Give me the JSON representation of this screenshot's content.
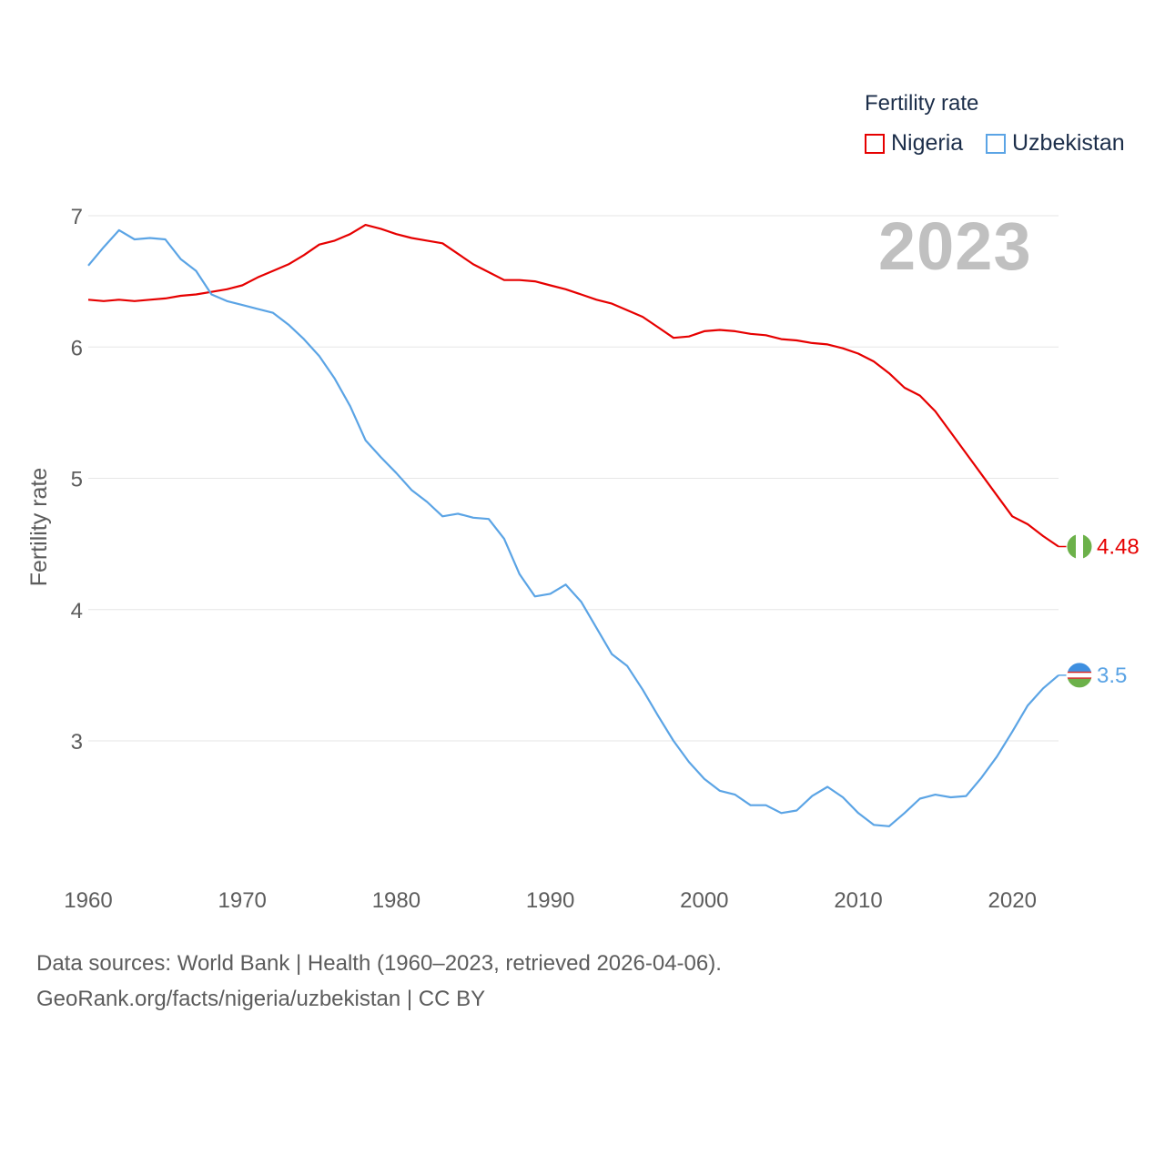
{
  "chart_data": {
    "type": "line",
    "ylabel": "Fertility rate",
    "xlabel": "",
    "xlim": [
      1960,
      2023
    ],
    "ylim": [
      2.0,
      7.0
    ],
    "yticks": [
      3,
      4,
      5,
      6,
      7
    ],
    "xticks": [
      1960,
      1970,
      1980,
      1990,
      2000,
      2010,
      2020
    ],
    "grid": true,
    "legend": {
      "title": "Fertility rate",
      "placement": "top-right"
    },
    "year_label": "2023",
    "series": [
      {
        "name": "Nigeria",
        "color": "#e60000",
        "end_label": "4.48",
        "flag_icon": "nigeria-flag-icon",
        "x": [
          1960,
          1961,
          1962,
          1963,
          1964,
          1965,
          1966,
          1967,
          1968,
          1969,
          1970,
          1971,
          1972,
          1973,
          1974,
          1975,
          1976,
          1977,
          1978,
          1979,
          1980,
          1981,
          1982,
          1983,
          1984,
          1985,
          1986,
          1987,
          1988,
          1989,
          1990,
          1991,
          1992,
          1993,
          1994,
          1995,
          1996,
          1997,
          1998,
          1999,
          2000,
          2001,
          2002,
          2003,
          2004,
          2005,
          2006,
          2007,
          2008,
          2009,
          2010,
          2011,
          2012,
          2013,
          2014,
          2015,
          2016,
          2017,
          2018,
          2019,
          2020,
          2021,
          2022,
          2023
        ],
        "values": [
          6.36,
          6.35,
          6.36,
          6.35,
          6.36,
          6.37,
          6.39,
          6.4,
          6.42,
          6.44,
          6.47,
          6.53,
          6.58,
          6.63,
          6.7,
          6.78,
          6.81,
          6.86,
          6.93,
          6.9,
          6.86,
          6.83,
          6.81,
          6.79,
          6.71,
          6.63,
          6.57,
          6.51,
          6.51,
          6.5,
          6.47,
          6.44,
          6.4,
          6.36,
          6.33,
          6.28,
          6.23,
          6.15,
          6.07,
          6.08,
          6.12,
          6.13,
          6.12,
          6.1,
          6.09,
          6.06,
          6.05,
          6.03,
          6.02,
          5.99,
          5.95,
          5.89,
          5.8,
          5.69,
          5.63,
          5.51,
          5.35,
          5.19,
          5.03,
          4.87,
          4.71,
          4.65,
          4.56,
          4.48
        ]
      },
      {
        "name": "Uzbekistan",
        "color": "#5ba4e5",
        "end_label": "3.5",
        "flag_icon": "uzbekistan-flag-icon",
        "x": [
          1960,
          1961,
          1962,
          1963,
          1964,
          1965,
          1966,
          1967,
          1968,
          1969,
          1970,
          1971,
          1972,
          1973,
          1974,
          1975,
          1976,
          1977,
          1978,
          1979,
          1980,
          1981,
          1982,
          1983,
          1984,
          1985,
          1986,
          1987,
          1988,
          1989,
          1990,
          1991,
          1992,
          1993,
          1994,
          1995,
          1996,
          1997,
          1998,
          1999,
          2000,
          2001,
          2002,
          2003,
          2004,
          2005,
          2006,
          2007,
          2008,
          2009,
          2010,
          2011,
          2012,
          2013,
          2014,
          2015,
          2016,
          2017,
          2018,
          2019,
          2020,
          2021,
          2022,
          2023
        ],
        "values": [
          6.62,
          6.76,
          6.89,
          6.82,
          6.83,
          6.82,
          6.67,
          6.58,
          6.4,
          6.35,
          6.32,
          6.29,
          6.26,
          6.17,
          6.06,
          5.93,
          5.76,
          5.55,
          5.29,
          5.16,
          5.04,
          4.91,
          4.82,
          4.71,
          4.73,
          4.7,
          4.69,
          4.54,
          4.27,
          4.1,
          4.12,
          4.19,
          4.06,
          3.86,
          3.66,
          3.57,
          3.39,
          3.19,
          3.0,
          2.84,
          2.71,
          2.62,
          2.59,
          2.51,
          2.51,
          2.45,
          2.47,
          2.58,
          2.65,
          2.57,
          2.45,
          2.36,
          2.35,
          2.45,
          2.56,
          2.59,
          2.57,
          2.58,
          2.72,
          2.88,
          3.07,
          3.27,
          3.4,
          3.5
        ]
      }
    ]
  },
  "footer": {
    "line1": "Data sources: World Bank | Health (1960–2023, retrieved 2026-04-06).",
    "line2": "GeoRank.org/facts/nigeria/uzbekistan | CC BY"
  }
}
